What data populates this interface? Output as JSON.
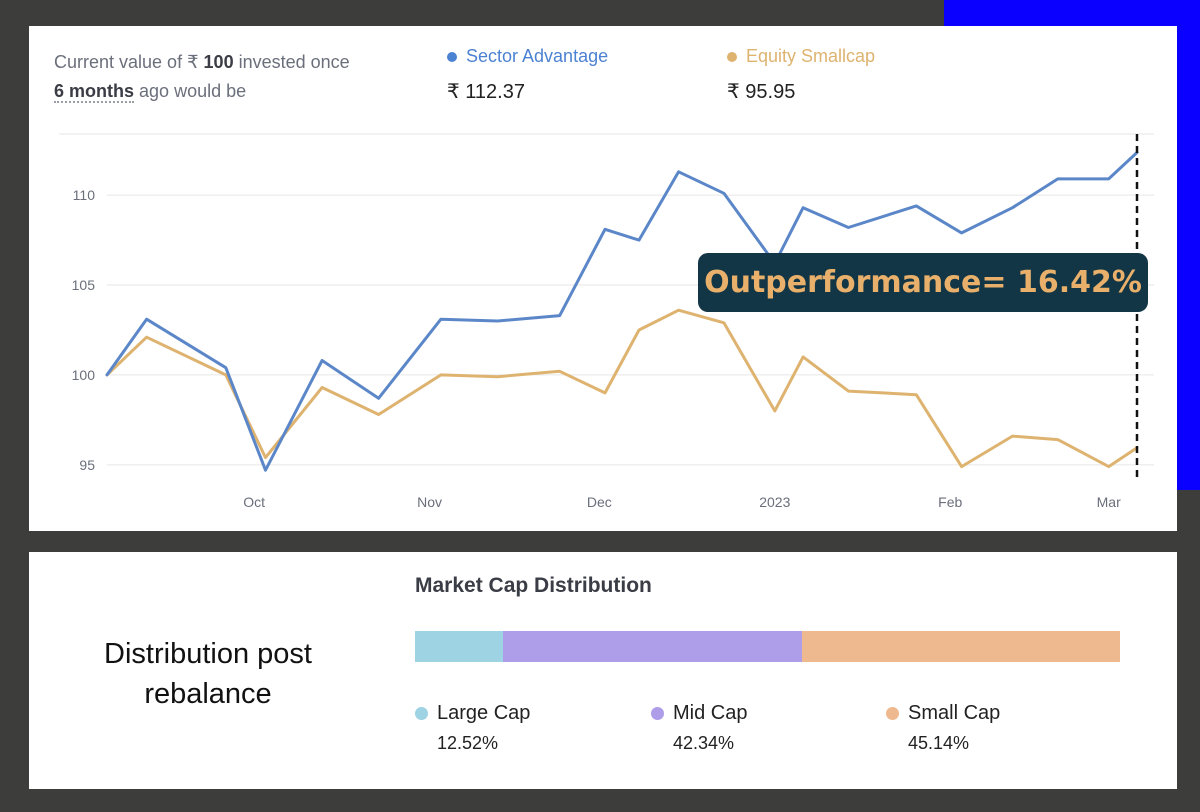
{
  "header": {
    "intro_prefix": "Current value of ₹",
    "intro_amount": "100",
    "intro_middle": "invested once",
    "period": "6 months",
    "intro_suffix": "ago would be"
  },
  "callout": {
    "text": "Outperformance= 16.42%"
  },
  "chart_data": {
    "type": "line",
    "x": [
      "2022-09-05",
      "2022-09-12",
      "2022-09-26",
      "2022-10-03",
      "2022-10-13",
      "2022-10-23",
      "2022-11-03",
      "2022-11-13",
      "2022-11-24",
      "2022-12-02",
      "2022-12-08",
      "2022-12-15",
      "2022-12-23",
      "2023-01-01",
      "2023-01-06",
      "2023-01-14",
      "2023-01-26",
      "2023-02-03",
      "2023-02-12",
      "2023-02-20",
      "2023-03-01",
      "2023-03-06"
    ],
    "x_ticks": [
      {
        "label": "Oct",
        "date": "2022-10-01"
      },
      {
        "label": "Nov",
        "date": "2022-11-01"
      },
      {
        "label": "Dec",
        "date": "2022-12-01"
      },
      {
        "label": "2023",
        "date": "2023-01-01"
      },
      {
        "label": "Feb",
        "date": "2023-02-01"
      },
      {
        "label": "Mar",
        "date": "2023-03-01"
      }
    ],
    "y_ticks": [
      95,
      100,
      105,
      110
    ],
    "ylim": [
      94.1,
      113.4
    ],
    "grid": true,
    "series": [
      {
        "name": "Sector Advantage",
        "color": "#5b87c9",
        "final_value": "₹ 112.37",
        "values": [
          100.0,
          103.1,
          100.4,
          94.7,
          100.8,
          98.7,
          103.1,
          103.0,
          103.3,
          108.1,
          107.5,
          111.3,
          110.1,
          106.2,
          109.3,
          108.2,
          109.4,
          107.9,
          109.3,
          110.9,
          110.9,
          112.37
        ]
      },
      {
        "name": "Equity Smallcap",
        "color": "#deb36f",
        "final_value": "₹ 95.95",
        "values": [
          100.0,
          102.1,
          100.0,
          95.4,
          99.3,
          97.8,
          100.0,
          99.9,
          100.2,
          99.0,
          102.5,
          103.6,
          102.9,
          98.0,
          101.0,
          99.1,
          98.9,
          94.9,
          96.6,
          96.4,
          94.9,
          95.95
        ]
      }
    ]
  },
  "distribution": {
    "caption": "Distribution post rebalance",
    "title": "Market Cap Distribution",
    "segments": [
      {
        "name": "Large Cap",
        "value": 12.52,
        "label": "12.52%",
        "color": "#9dd3e3"
      },
      {
        "name": "Mid Cap",
        "value": 42.34,
        "label": "42.34%",
        "color": "#ae9ee9"
      },
      {
        "name": "Small Cap",
        "value": 45.14,
        "label": "45.14%",
        "color": "#eeb98e"
      }
    ]
  }
}
